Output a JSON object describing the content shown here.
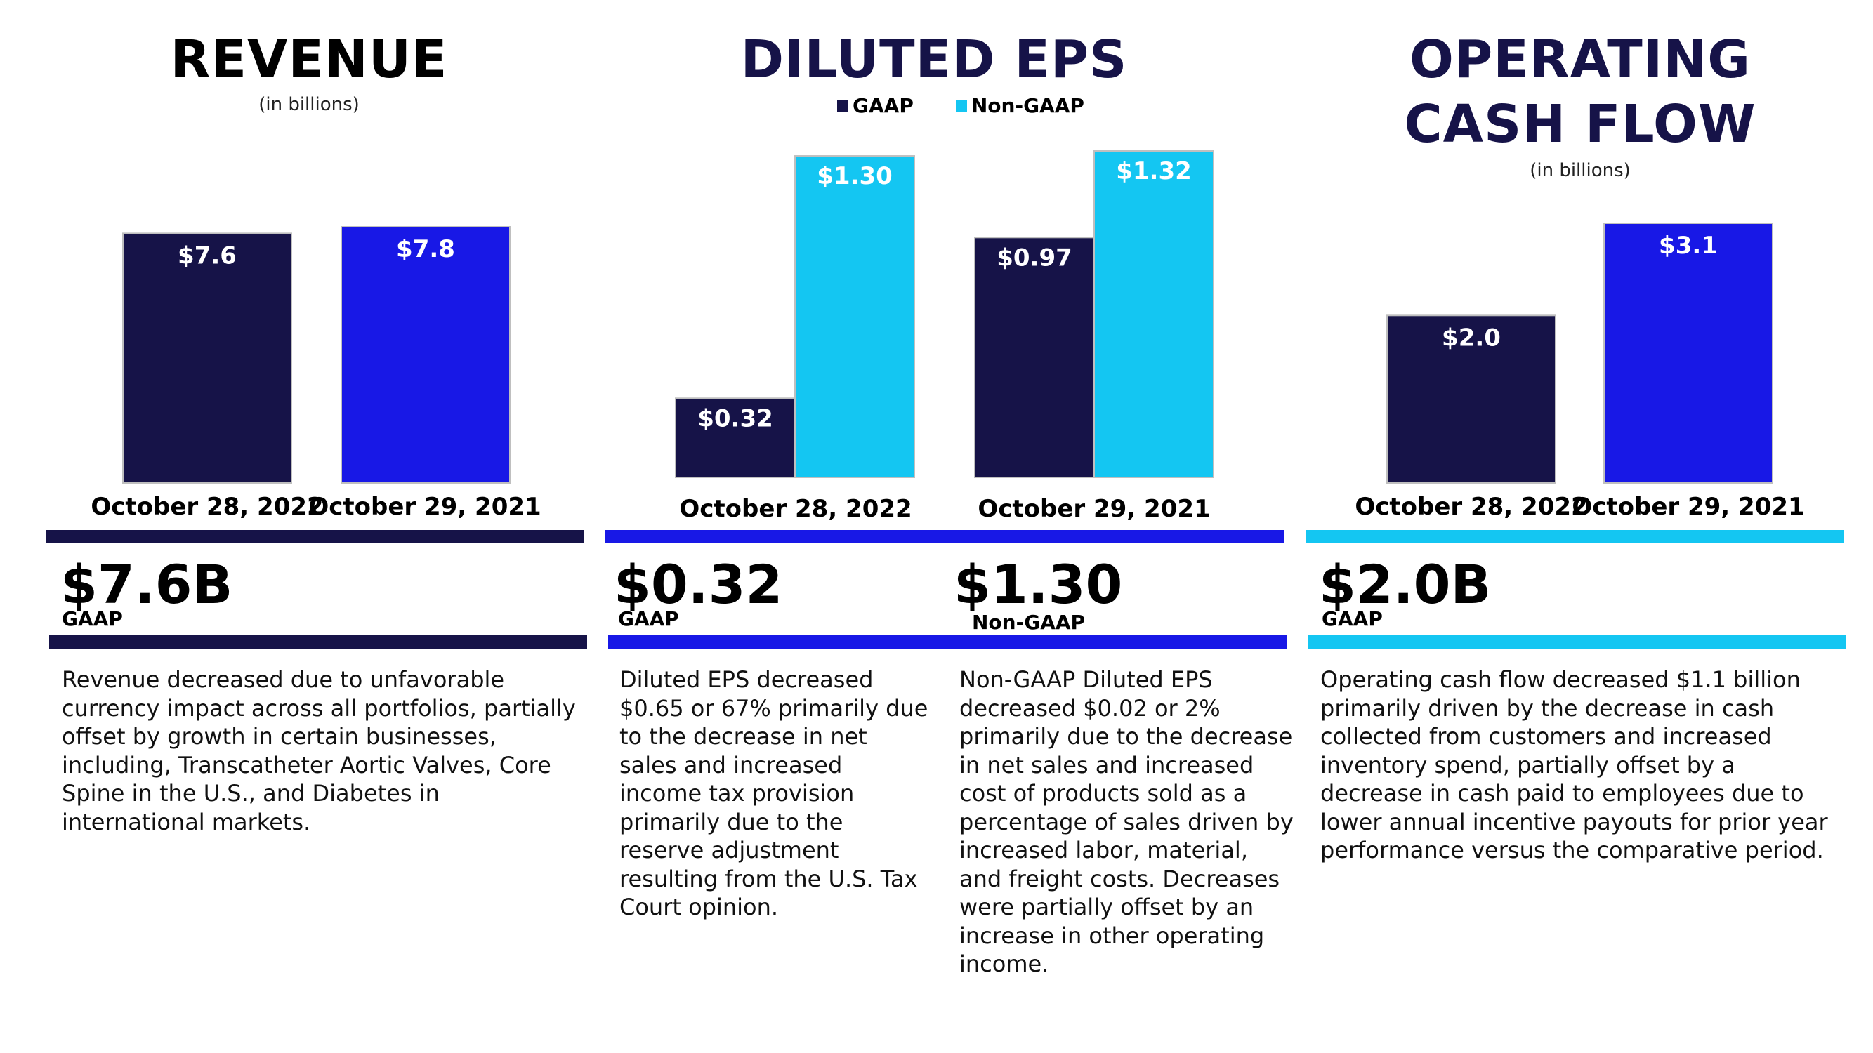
{
  "colors": {
    "navy": "#161348",
    "blue": "#1818e6",
    "cyan": "#14c6f2"
  },
  "revenue": {
    "title": "REVENUE",
    "subtitle": "(in billions)",
    "headline": "$7.6B",
    "headline_tag": "GAAP",
    "text": "Revenue decreased due to unfavorable currency impact across all portfolios, partially offset by growth in certain businesses, including, Transcatheter Aortic Valves, Core Spine in the U.S., and Diabetes in international markets."
  },
  "eps": {
    "title": "DILUTED EPS",
    "legend": [
      "GAAP",
      "Non-GAAP"
    ],
    "headline_gaap": "$0.32",
    "headline_gaap_tag": "GAAP",
    "headline_nongaap": "$1.30",
    "headline_nongaap_tag": "Non-GAAP",
    "text_gaap": "Diluted EPS decreased $0.65 or 67% primarily due to the decrease in net sales and increased income tax provision primarily due to the reserve adjustment resulting from the U.S. Tax Court opinion.",
    "text_nongaap": "Non-GAAP Diluted EPS decreased $0.02 or 2% primarily due to the decrease in net sales and increased cost of products sold as a percentage of sales driven by increased labor, material, and freight costs.  Decreases were partially offset by an increase in other operating income."
  },
  "ocf": {
    "title_line1": "OPERATING",
    "title_line2": "CASH FLOW",
    "subtitle": "(in billions)",
    "headline": "$2.0B",
    "headline_tag": "GAAP",
    "text": "Operating cash flow decreased $1.1 billion primarily driven by the decrease in cash collected from customers and increased inventory spend, partially offset by a decrease in cash paid to employees due to lower annual incentive payouts for prior year performance versus the comparative period."
  },
  "chart_data": [
    {
      "type": "bar",
      "title": "REVENUE",
      "subtitle": "(in billions)",
      "categories": [
        "October 28, 2022",
        "October 29, 2021"
      ],
      "values": [
        7.6,
        7.8
      ],
      "data_labels": [
        "$7.6",
        "$7.8"
      ],
      "colors": [
        "#161348",
        "#1818e6"
      ],
      "xlabel": "",
      "ylabel": "",
      "ylim": [
        0,
        9.2
      ]
    },
    {
      "type": "bar",
      "title": "DILUTED EPS",
      "categories": [
        "October 28, 2022",
        "October 29, 2021"
      ],
      "series": [
        {
          "name": "GAAP",
          "values": [
            0.32,
            0.97
          ],
          "labels": [
            "$0.32",
            "$0.97"
          ],
          "color": "#161348"
        },
        {
          "name": "Non-GAAP",
          "values": [
            1.3,
            1.32
          ],
          "labels": [
            "$1.30",
            "$1.32"
          ],
          "color": "#14c6f2"
        }
      ],
      "xlabel": "",
      "ylabel": "",
      "ylim": [
        0,
        1.42
      ]
    },
    {
      "type": "bar",
      "title": "OPERATING CASH FLOW",
      "subtitle": "(in billions)",
      "categories": [
        "October 28, 2022",
        "October 29, 2021"
      ],
      "values": [
        2.0,
        3.1
      ],
      "data_labels": [
        "$2.0",
        "$3.1"
      ],
      "colors": [
        "#161348",
        "#1818e6"
      ],
      "xlabel": "",
      "ylabel": "",
      "ylim": [
        0,
        5.7
      ]
    }
  ]
}
